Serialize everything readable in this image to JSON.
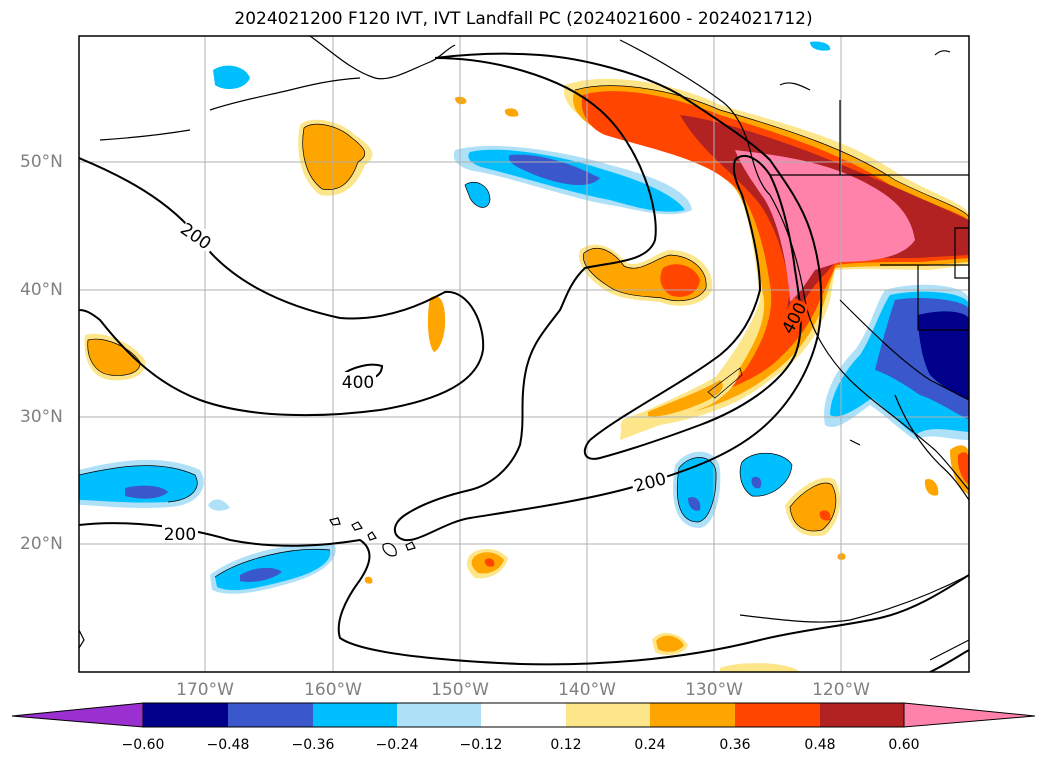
{
  "title": "2024021200 F120 IVT, IVT Landfall PC (2024021600 - 2024021712)",
  "lat_labels": [
    "50°N",
    "40°N",
    "30°N",
    "20°N"
  ],
  "lon_labels": [
    "170°W",
    "160°W",
    "150°W",
    "140°W",
    "130°W",
    "120°W"
  ],
  "colorbar": {
    "ticks": [
      "−0.60",
      "−0.48",
      "−0.36",
      "−0.24",
      "−0.12",
      "0.12",
      "0.24",
      "0.36",
      "0.48",
      "0.60"
    ],
    "colors": [
      "#9b30d0",
      "#00008b",
      "#3a58cc",
      "#00bfff",
      "#aee0f8",
      "#ffffff",
      "#fde68a",
      "#ffa500",
      "#ff4500",
      "#b22222",
      "#ff82ab"
    ]
  },
  "contour_labels": [
    "200",
    "200",
    "400",
    "400",
    "200"
  ]
}
